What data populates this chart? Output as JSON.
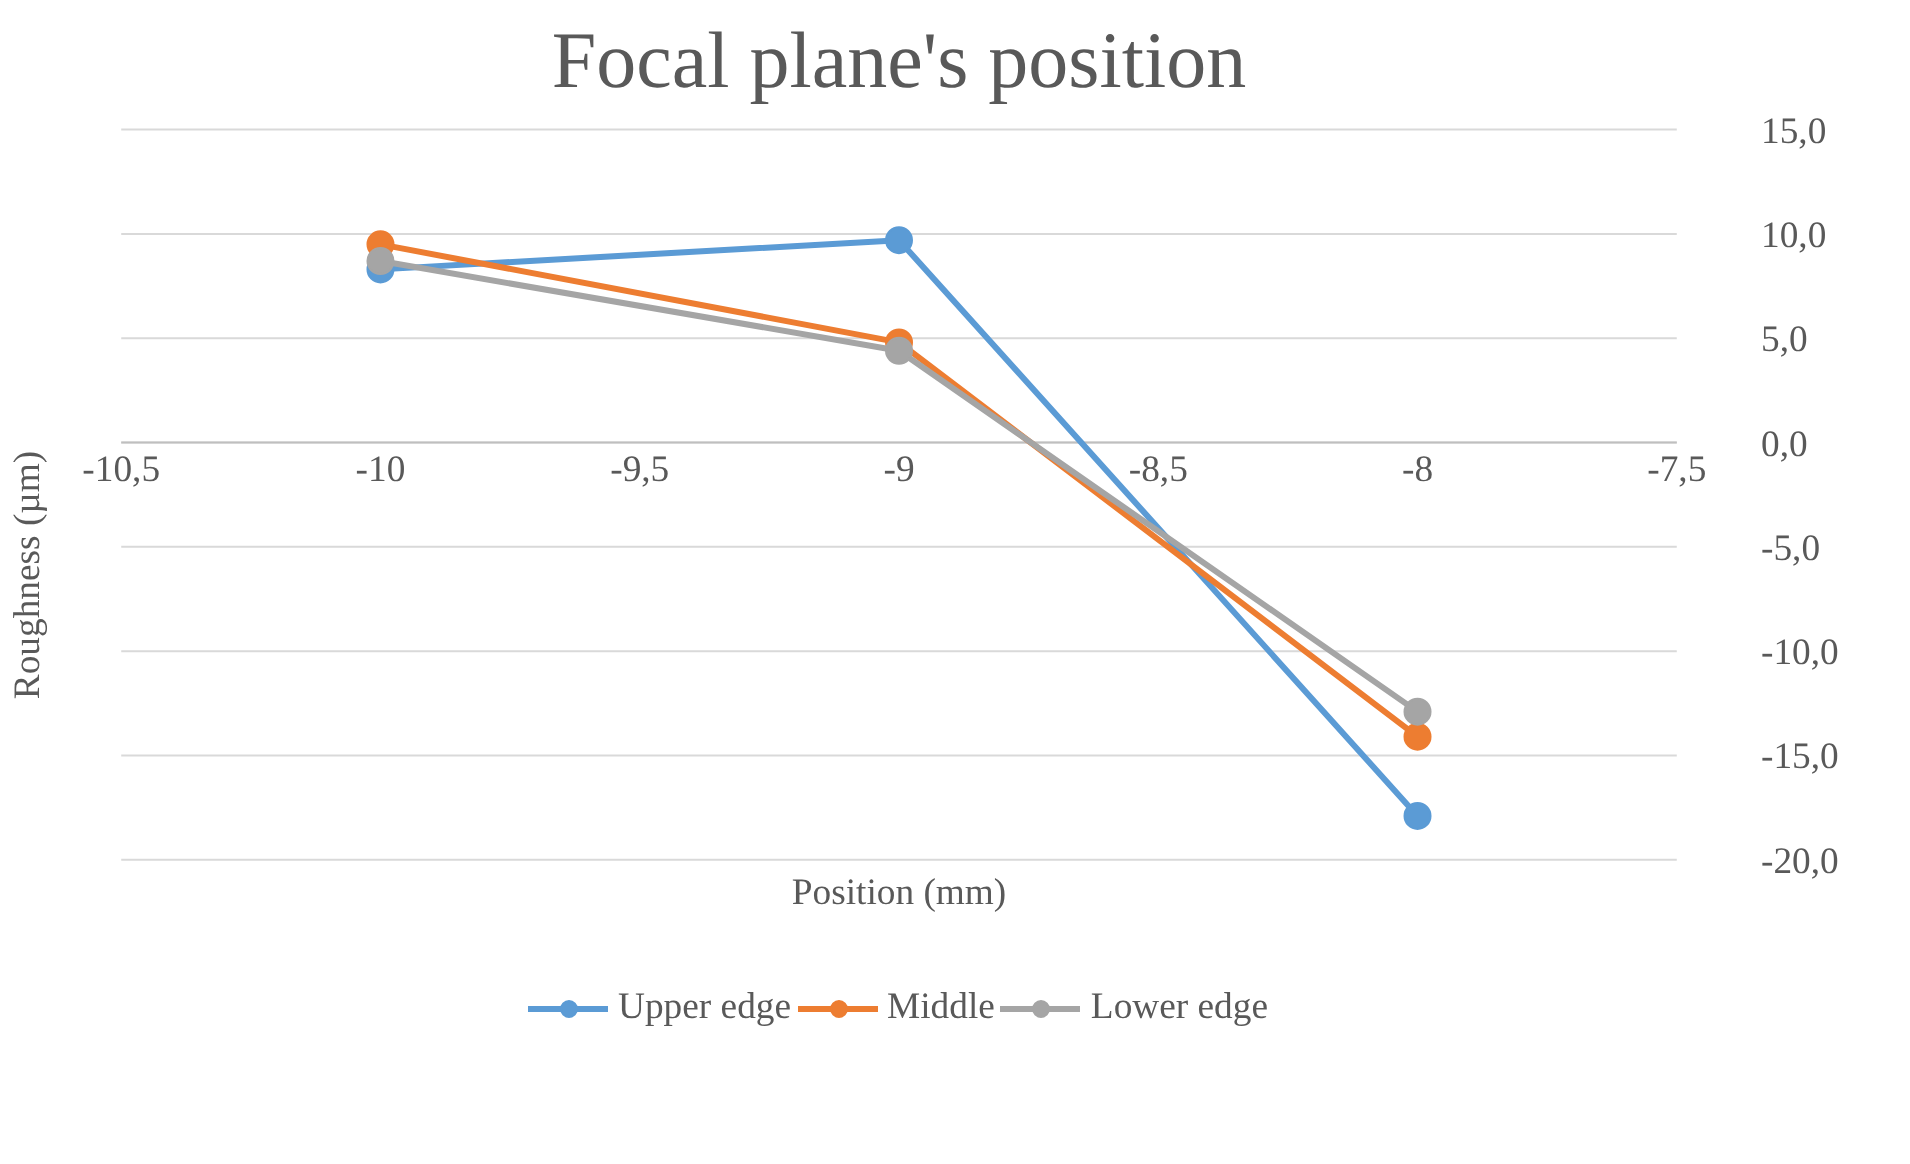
{
  "chart_data": {
    "type": "line",
    "title": "Focal plane's position",
    "xlabel": "Position (mm)",
    "ylabel": "Roughness (µm)",
    "x": [
      -10,
      -9,
      -8
    ],
    "series": [
      {
        "name": "Upper edge",
        "color": "#5b9bd5",
        "values": [
          8.3,
          9.7,
          -17.9
        ]
      },
      {
        "name": "Middle",
        "color": "#ed7d31",
        "values": [
          9.5,
          4.8,
          -14.1
        ]
      },
      {
        "name": "Lower edge",
        "color": "#a5a5a5",
        "values": [
          8.7,
          4.4,
          -12.9
        ]
      }
    ],
    "xlim": [
      -10.5,
      -7.5
    ],
    "xticks": [
      {
        "value": -10.5,
        "label": "-10,5"
      },
      {
        "value": -10,
        "label": "-10"
      },
      {
        "value": -9.5,
        "label": "-9,5"
      },
      {
        "value": -9,
        "label": "-9"
      },
      {
        "value": -8.5,
        "label": "-8,5"
      },
      {
        "value": -8,
        "label": "-8"
      },
      {
        "value": -7.5,
        "label": "-7,5"
      }
    ],
    "ylim": [
      -20,
      15
    ],
    "yticks": [
      {
        "value": -20,
        "label": "-20,0"
      },
      {
        "value": -15,
        "label": "-15,0"
      },
      {
        "value": -10,
        "label": "-10,0"
      },
      {
        "value": -5,
        "label": "-5,0"
      },
      {
        "value": 0,
        "label": "0,0"
      },
      {
        "value": 5,
        "label": "5,0"
      },
      {
        "value": 10,
        "label": "10,0"
      },
      {
        "value": 15,
        "label": "15,0"
      }
    ],
    "grid": "y",
    "legend": "bottom",
    "marker": "circle",
    "line_style": "solid"
  }
}
